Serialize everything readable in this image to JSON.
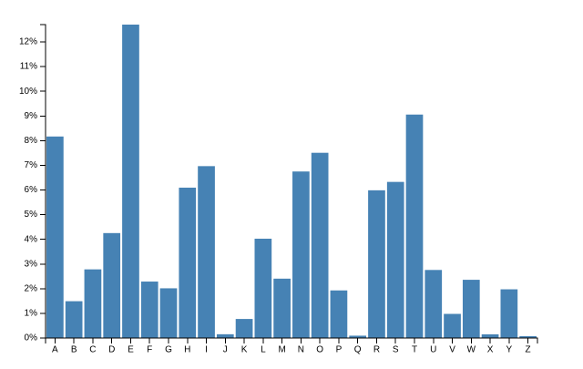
{
  "chart_data": {
    "type": "bar",
    "categories": [
      "A",
      "B",
      "C",
      "D",
      "E",
      "F",
      "G",
      "H",
      "I",
      "J",
      "K",
      "L",
      "M",
      "N",
      "O",
      "P",
      "Q",
      "R",
      "S",
      "T",
      "U",
      "V",
      "W",
      "X",
      "Y",
      "Z"
    ],
    "values": [
      8.167,
      1.492,
      2.782,
      4.253,
      12.702,
      2.288,
      2.015,
      6.094,
      6.966,
      0.153,
      0.772,
      4.025,
      2.406,
      6.749,
      7.507,
      1.929,
      0.095,
      5.987,
      6.327,
      9.056,
      2.758,
      0.978,
      2.36,
      0.15,
      1.974,
      0.074
    ],
    "color": "steelblue",
    "ylim": [
      0,
      12.702
    ],
    "yticks": [
      {
        "value": 0,
        "label": "0%"
      },
      {
        "value": 1,
        "label": "1%"
      },
      {
        "value": 2,
        "label": "2%"
      },
      {
        "value": 3,
        "label": "3%"
      },
      {
        "value": 4,
        "label": "4%"
      },
      {
        "value": 5,
        "label": "5%"
      },
      {
        "value": 6,
        "label": "6%"
      },
      {
        "value": 7,
        "label": "7%"
      },
      {
        "value": 8,
        "label": "8%"
      },
      {
        "value": 9,
        "label": "9%"
      },
      {
        "value": 10,
        "label": "10%"
      },
      {
        "value": 11,
        "label": "11%"
      },
      {
        "value": 12,
        "label": "12%"
      }
    ]
  }
}
